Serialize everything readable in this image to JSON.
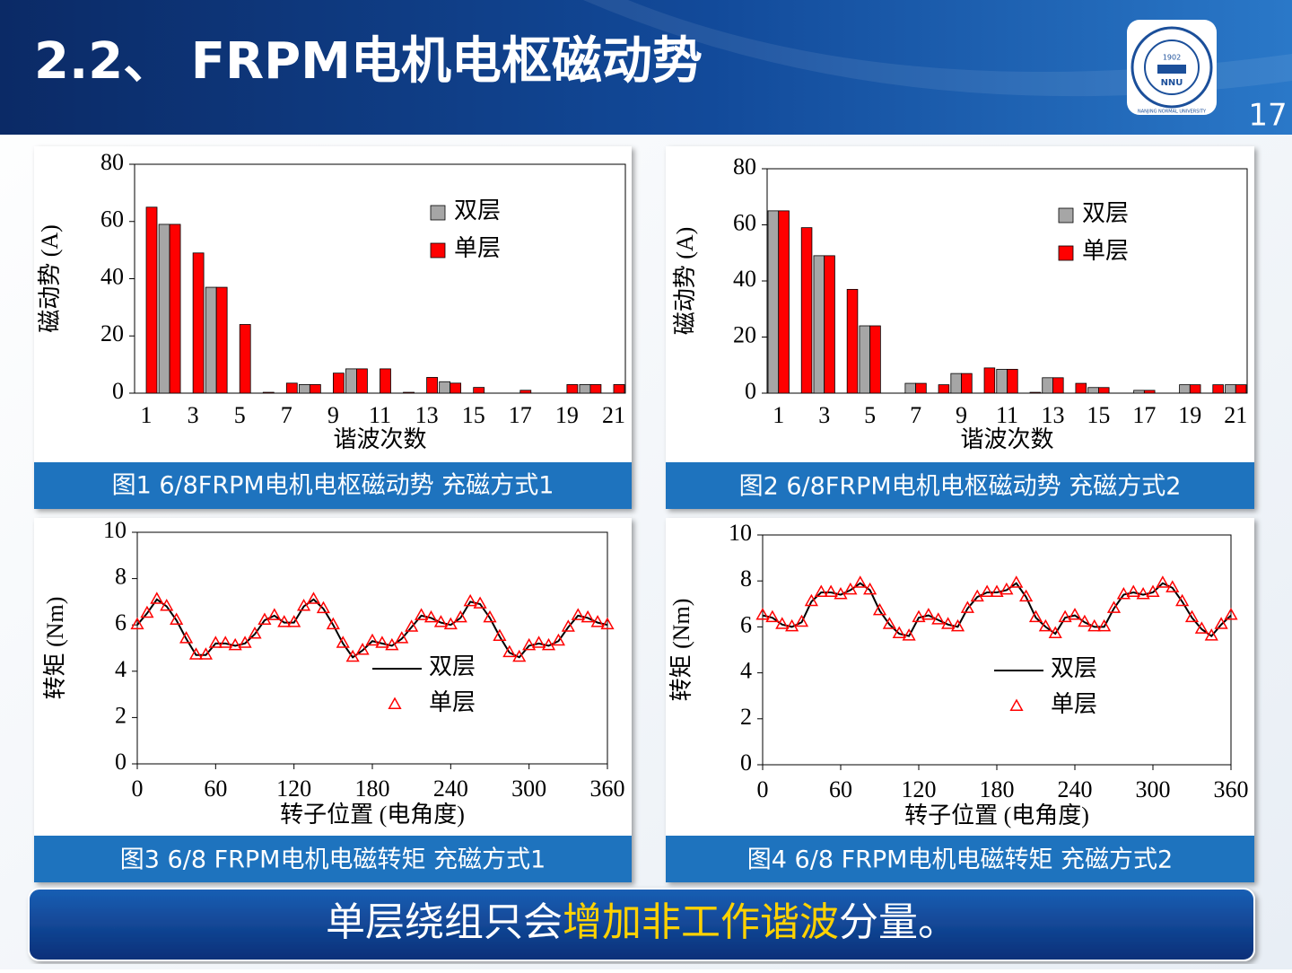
{
  "header": {
    "title": "2.2、 FRPM电机电枢磁动势",
    "page_number": "17",
    "logo": {
      "year": "1902",
      "abbr": "NNU",
      "name": "NANJING NORMAL UNIVERSITY"
    }
  },
  "captions": [
    "图1  6/8FRPM电机电枢磁动势 充磁方式1",
    "图2  6/8FRPM电机电枢磁动势 充磁方式2",
    "图3  6/8 FRPM电机电磁转矩 充磁方式1",
    "图4  6/8 FRPM电机电磁转矩 充磁方式2"
  ],
  "conclusion": {
    "before": "单层绕组只会",
    "highlight": "增加非工作谐波",
    "after": "分量。"
  },
  "chart_data": [
    {
      "type": "bar",
      "ylabel": "磁动势 (A)",
      "xlabel": "谐波次数",
      "categories": [
        1,
        null,
        3,
        null,
        5,
        null,
        7,
        null,
        9,
        null,
        11,
        null,
        13,
        null,
        15,
        null,
        17,
        null,
        19,
        null,
        21
      ],
      "series": [
        {
          "name": "双层",
          "color": "#a6a6a6",
          "values": [
            0,
            59,
            0,
            37,
            0,
            0,
            0,
            3,
            0,
            8.5,
            0,
            0,
            0,
            4,
            0,
            0,
            0,
            0,
            0,
            3,
            0
          ]
        },
        {
          "name": "单层",
          "color": "#ff0000",
          "values": [
            65,
            59,
            49,
            37,
            24,
            0.3,
            3.5,
            3,
            7,
            8.5,
            8.5,
            0.3,
            5.5,
            3.5,
            2,
            0,
            1,
            0,
            3,
            3,
            3
          ]
        }
      ],
      "ylim": [
        0,
        80
      ],
      "yticks": [
        0,
        20,
        40,
        60,
        80
      ]
    },
    {
      "type": "bar",
      "ylabel": "磁动势 (A)",
      "xlabel": "谐波次数",
      "categories": [
        1,
        null,
        3,
        null,
        5,
        null,
        7,
        null,
        9,
        null,
        11,
        null,
        13,
        null,
        15,
        null,
        17,
        null,
        19,
        null,
        21
      ],
      "series": [
        {
          "name": "双层",
          "color": "#a6a6a6",
          "values": [
            65,
            0,
            49,
            0,
            24,
            0,
            3.5,
            0,
            7,
            0,
            8.5,
            0,
            5.5,
            0,
            2,
            0,
            1,
            0,
            3,
            0,
            3
          ]
        },
        {
          "name": "单层",
          "color": "#ff0000",
          "values": [
            65,
            59,
            49,
            37,
            24,
            0,
            3.5,
            3,
            7,
            9,
            8.5,
            0.3,
            5.5,
            3.5,
            2,
            0,
            1,
            0,
            3,
            3,
            3
          ]
        }
      ],
      "ylim": [
        0,
        80
      ],
      "yticks": [
        0,
        20,
        40,
        60,
        80
      ]
    },
    {
      "type": "line",
      "ylabel": "转矩 (Nm)",
      "xlabel": "转子位置 (电角度)",
      "x": [
        0,
        7.5,
        15,
        22.5,
        30,
        37.5,
        45,
        52.5,
        60,
        67.5,
        75,
        82.5,
        90,
        97.5,
        105,
        112.5,
        120,
        127.5,
        135,
        142.5,
        150,
        157.5,
        165,
        172.5,
        180,
        187.5,
        195,
        202.5,
        210,
        217.5,
        225,
        232.5,
        240,
        247.5,
        255,
        262.5,
        270,
        277.5,
        285,
        292.5,
        300,
        307.5,
        315,
        322.5,
        330,
        337.5,
        345,
        352.5,
        360
      ],
      "series": [
        {
          "name": "双层",
          "color": "#000000",
          "values": [
            6.0,
            6.5,
            7.1,
            6.8,
            6.2,
            5.4,
            4.7,
            4.7,
            5.2,
            5.2,
            5.1,
            5.2,
            5.6,
            6.2,
            6.4,
            6.1,
            6.1,
            6.8,
            7.1,
            6.7,
            6.0,
            5.2,
            4.6,
            4.9,
            5.3,
            5.2,
            5.1,
            5.4,
            5.9,
            6.4,
            6.3,
            6.1,
            6.0,
            6.3,
            7.0,
            6.9,
            6.3,
            5.5,
            4.8,
            4.6,
            5.1,
            5.2,
            5.1,
            5.3,
            5.9,
            6.4,
            6.3,
            6.1,
            6.0
          ]
        },
        {
          "name": "单层",
          "color": "#ff0000",
          "marker": "triangle",
          "values": [
            6.0,
            6.5,
            7.1,
            6.8,
            6.2,
            5.4,
            4.7,
            4.7,
            5.2,
            5.2,
            5.1,
            5.2,
            5.6,
            6.2,
            6.4,
            6.1,
            6.1,
            6.8,
            7.1,
            6.7,
            6.0,
            5.2,
            4.6,
            4.9,
            5.3,
            5.2,
            5.1,
            5.4,
            5.9,
            6.4,
            6.3,
            6.1,
            6.0,
            6.3,
            7.0,
            6.9,
            6.3,
            5.5,
            4.8,
            4.6,
            5.1,
            5.2,
            5.1,
            5.3,
            5.9,
            6.4,
            6.3,
            6.1,
            6.0
          ]
        }
      ],
      "xlim": [
        0,
        360
      ],
      "xticks": [
        0,
        60,
        120,
        180,
        240,
        300,
        360
      ],
      "ylim": [
        0,
        10
      ],
      "yticks": [
        0,
        2,
        4,
        6,
        8,
        10
      ]
    },
    {
      "type": "line",
      "ylabel": "转矩 (Nm)",
      "xlabel": "转子位置 (电角度)",
      "x": [
        0,
        7.5,
        15,
        22.5,
        30,
        37.5,
        45,
        52.5,
        60,
        67.5,
        75,
        82.5,
        90,
        97.5,
        105,
        112.5,
        120,
        127.5,
        135,
        142.5,
        150,
        157.5,
        165,
        172.5,
        180,
        187.5,
        195,
        202.5,
        210,
        217.5,
        225,
        232.5,
        240,
        247.5,
        255,
        262.5,
        270,
        277.5,
        285,
        292.5,
        300,
        307.5,
        315,
        322.5,
        330,
        337.5,
        345,
        352.5,
        360
      ],
      "series": [
        {
          "name": "双层",
          "color": "#000000",
          "values": [
            6.5,
            6.4,
            6.1,
            6.0,
            6.2,
            7.1,
            7.5,
            7.5,
            7.4,
            7.6,
            7.9,
            7.6,
            6.7,
            6.1,
            5.7,
            5.6,
            6.4,
            6.5,
            6.3,
            6.1,
            6.0,
            6.8,
            7.3,
            7.5,
            7.5,
            7.6,
            7.9,
            7.3,
            6.4,
            6.0,
            5.7,
            6.4,
            6.5,
            6.2,
            6.0,
            6.0,
            6.8,
            7.4,
            7.5,
            7.4,
            7.5,
            7.9,
            7.7,
            7.1,
            6.4,
            5.9,
            5.6,
            6.1,
            6.5
          ]
        },
        {
          "name": "单层",
          "color": "#ff0000",
          "marker": "triangle",
          "values": [
            6.5,
            6.4,
            6.1,
            6.0,
            6.2,
            7.1,
            7.5,
            7.5,
            7.4,
            7.6,
            7.9,
            7.6,
            6.7,
            6.1,
            5.7,
            5.6,
            6.4,
            6.5,
            6.3,
            6.1,
            6.0,
            6.8,
            7.3,
            7.5,
            7.5,
            7.6,
            7.9,
            7.3,
            6.4,
            6.0,
            5.7,
            6.4,
            6.5,
            6.2,
            6.0,
            6.0,
            6.8,
            7.4,
            7.5,
            7.4,
            7.5,
            7.9,
            7.7,
            7.1,
            6.4,
            5.9,
            5.6,
            6.1,
            6.5
          ]
        }
      ],
      "xlim": [
        0,
        360
      ],
      "xticks": [
        0,
        60,
        120,
        180,
        240,
        300,
        360
      ],
      "ylim": [
        0,
        10
      ],
      "yticks": [
        0,
        2,
        4,
        6,
        8,
        10
      ]
    }
  ]
}
